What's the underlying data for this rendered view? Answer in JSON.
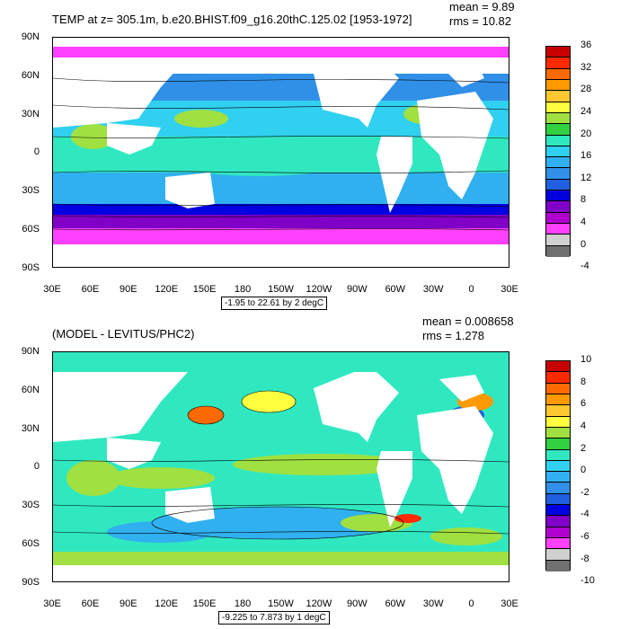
{
  "top": {
    "title": "TEMP at z= 305.1m, b.e20.BHIST.f09_g16.20thC.125.02 [1953-1972]",
    "mean": "mean = 9.89",
    "rms": "rms = 10.82",
    "caption": "-1.95 to 22.61 by 2 degC",
    "colorbar_labels": [
      "36",
      "32",
      "28",
      "24",
      "20",
      "16",
      "12",
      "8",
      "4",
      "0",
      "-4"
    ],
    "colorbar_colors": [
      "#c80000",
      "#ff2a00",
      "#ff6a00",
      "#ff9a00",
      "#ffc830",
      "#ffff40",
      "#a0e040",
      "#30d040",
      "#30e8c0",
      "#30d0f0",
      "#30b0f0",
      "#3090e8",
      "#2060e0",
      "#0000e0",
      "#8000c8",
      "#b000d0",
      "#ff40ff",
      "#d0d0d0",
      "#707070"
    ]
  },
  "bottom": {
    "title": "(MODEL - LEVITUS/PHC2)",
    "mean": "mean = 0.008658",
    "rms": "rms = 1.278",
    "caption": "-9.225 to 7.873 by 1 degC",
    "colorbar_labels": [
      "10",
      "8",
      "6",
      "4",
      "2",
      "0",
      "-2",
      "-4",
      "-6",
      "-8",
      "-10"
    ],
    "colorbar_colors": [
      "#c80000",
      "#ff2a00",
      "#ff6a00",
      "#ff9a00",
      "#ffc830",
      "#ffff40",
      "#a0e040",
      "#30d040",
      "#30e8c0",
      "#30d0f0",
      "#30b0f0",
      "#3090e8",
      "#2060e0",
      "#0000e0",
      "#8000c8",
      "#b000d0",
      "#ff40ff",
      "#d0d0d0",
      "#707070"
    ]
  },
  "axes": {
    "lat_labels": [
      "90N",
      "60N",
      "30N",
      "0",
      "30S",
      "60S",
      "90S"
    ],
    "lon_labels": [
      "30E",
      "60E",
      "90E",
      "120E",
      "150E",
      "180",
      "150W",
      "120W",
      "90W",
      "60W",
      "30W",
      "0",
      "30E"
    ]
  }
}
